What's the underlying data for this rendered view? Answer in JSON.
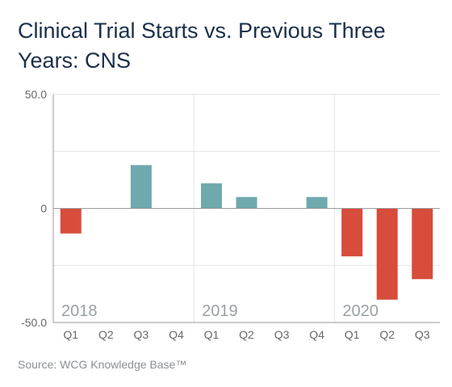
{
  "title": "Clinical Trial Starts vs. Previous Three Years: CNS",
  "source": "Source: WCG Knowledge Base™",
  "chart_data": {
    "type": "bar",
    "categories": [
      "Q1",
      "Q2",
      "Q3",
      "Q4",
      "Q1",
      "Q2",
      "Q3",
      "Q4",
      "Q1",
      "Q2",
      "Q3"
    ],
    "groups": [
      {
        "label": "2018",
        "count": 4
      },
      {
        "label": "2019",
        "count": 4
      },
      {
        "label": "2020",
        "count": 3
      }
    ],
    "values": [
      -11,
      0,
      19,
      0,
      11,
      5,
      0,
      5,
      -21,
      -40,
      -31
    ],
    "ylim": [
      -50,
      50
    ],
    "yticks": [
      {
        "value": 50,
        "label": "50.0"
      },
      {
        "value": 0,
        "label": "0"
      },
      {
        "value": -50,
        "label": "-50.0"
      }
    ],
    "gridlines": [
      50,
      25,
      0,
      -25,
      -50
    ],
    "colors": {
      "positive": "#6ea9ad",
      "negative": "#d84c3b",
      "grid": "#e2e2e2",
      "axis": "#9a9a9a",
      "tick_text": "#666666",
      "year_text": "#9aa0a6"
    }
  }
}
